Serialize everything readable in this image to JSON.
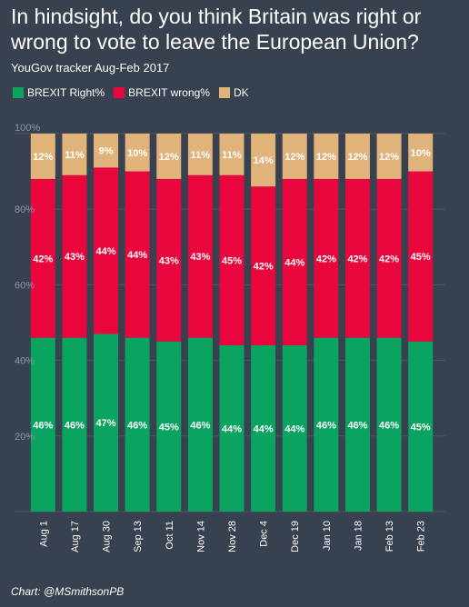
{
  "chart_data": {
    "type": "bar",
    "stacked": true,
    "title": "In hindsight, do you think Britain was right or wrong to vote to leave the European Union?",
    "subtitle": "YouGov tracker Aug-Feb 2017",
    "credit": "Chart: @MSmithsonPB",
    "categories": [
      "Aug 1",
      "Aug 17",
      "Aug 30",
      "Sep 13",
      "Oct 11",
      "Nov 14",
      "Nov 28",
      "Dec 4",
      "Dec 19",
      "Jan 10",
      "Jan 18",
      "Feb 13",
      "Feb 23"
    ],
    "series": [
      {
        "name": "BREXIT Right%",
        "color": "#0aa360",
        "values": [
          46,
          46,
          47,
          46,
          45,
          46,
          44,
          44,
          44,
          46,
          46,
          46,
          45
        ]
      },
      {
        "name": "BREXIT wrong%",
        "color": "#e8063c",
        "values": [
          42,
          43,
          44,
          44,
          43,
          43,
          45,
          42,
          44,
          42,
          42,
          42,
          45
        ]
      },
      {
        "name": "DK",
        "color": "#e0b37a",
        "values": [
          12,
          11,
          9,
          10,
          12,
          11,
          11,
          14,
          12,
          12,
          12,
          12,
          10
        ]
      }
    ],
    "yticks": [
      "20%",
      "40%",
      "60%",
      "80%",
      "100%"
    ],
    "ylim": [
      0,
      100
    ],
    "grid": true,
    "legend_position": "top-left"
  }
}
